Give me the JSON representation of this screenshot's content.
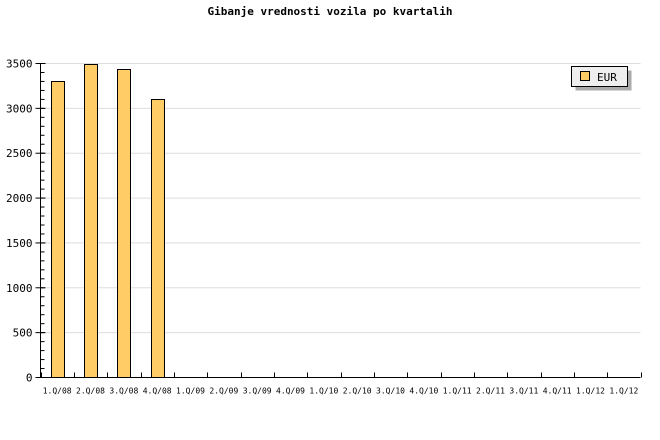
{
  "chart_data": {
    "type": "bar",
    "title": "Gibanje vrednosti vozila po kvartalih",
    "xlabel": "",
    "ylabel": "",
    "categories": [
      "1.Q/08",
      "2.Q/08",
      "3.Q/08",
      "4.Q/08",
      "1.Q/09",
      "2.Q/09",
      "3.Q/09",
      "4.Q/09",
      "1.Q/10",
      "2.Q/10",
      "3.Q/10",
      "4.Q/10",
      "1.Q/11",
      "2.Q/11",
      "3.Q/11",
      "4.Q/11",
      "1.Q/12",
      "1.Q/12"
    ],
    "series": [
      {
        "name": "EUR",
        "color": "#ffcc66",
        "values": [
          3300,
          3500,
          3440,
          3100,
          null,
          null,
          null,
          null,
          null,
          null,
          null,
          null,
          null,
          null,
          null,
          null,
          null,
          null
        ]
      }
    ],
    "ylim": [
      0,
      3500
    ],
    "yticks": [
      0,
      500,
      1000,
      1500,
      2000,
      2500,
      3000,
      3500
    ],
    "grid": true,
    "legend": "top-right"
  }
}
